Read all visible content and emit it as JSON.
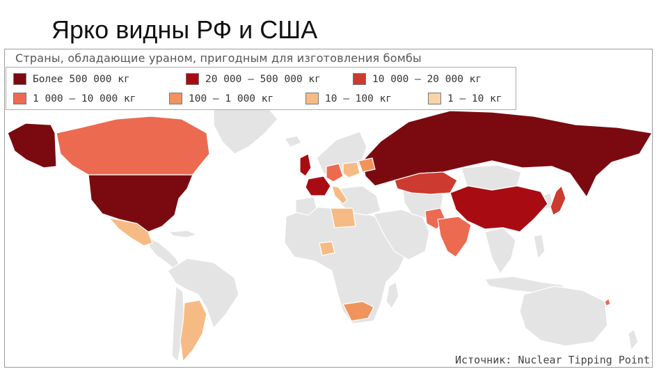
{
  "slide": {
    "title": "Ярко видны РФ и США"
  },
  "map": {
    "title": "Страны, обладающие ураном, пригодным для изготовления бомбы",
    "source": "Источник: Nuclear Tipping Point",
    "no_data_color": "#e4e4e4",
    "legend": [
      {
        "label": "Более 500 000 кг",
        "color": "#7b0a10"
      },
      {
        "label": "20 000 – 500 000 кг",
        "color": "#a80c12"
      },
      {
        "label": "10 000 – 20 000 кг",
        "color": "#cc3a30"
      },
      {
        "label": "1 000 – 10 000 кг",
        "color": "#ec6a50"
      },
      {
        "label": "100 – 1 000 кг",
        "color": "#f0945e"
      },
      {
        "label": "10 – 100 кг",
        "color": "#f6bb84"
      },
      {
        "label": "1 – 10 кг",
        "color": "#f9d4a8"
      }
    ],
    "regions": [
      {
        "name": "russia",
        "class": 0
      },
      {
        "name": "usa",
        "class": 0
      },
      {
        "name": "alaska",
        "class": 0
      },
      {
        "name": "china",
        "class": 1
      },
      {
        "name": "uk",
        "class": 1
      },
      {
        "name": "france",
        "class": 1
      },
      {
        "name": "kazakhstan",
        "class": 2
      },
      {
        "name": "japan",
        "class": 2
      },
      {
        "name": "canada",
        "class": 3
      },
      {
        "name": "india",
        "class": 3
      },
      {
        "name": "pakistan",
        "class": 3
      },
      {
        "name": "germany",
        "class": 3
      },
      {
        "name": "south-africa",
        "class": 4
      },
      {
        "name": "belarus",
        "class": 4
      },
      {
        "name": "mexico",
        "class": 5
      },
      {
        "name": "argentina",
        "class": 5
      },
      {
        "name": "libya",
        "class": 5
      },
      {
        "name": "nigeria",
        "class": 5
      },
      {
        "name": "poland",
        "class": 5
      },
      {
        "name": "italy",
        "class": 5
      },
      {
        "name": "australia-dot",
        "class": 3
      }
    ]
  }
}
